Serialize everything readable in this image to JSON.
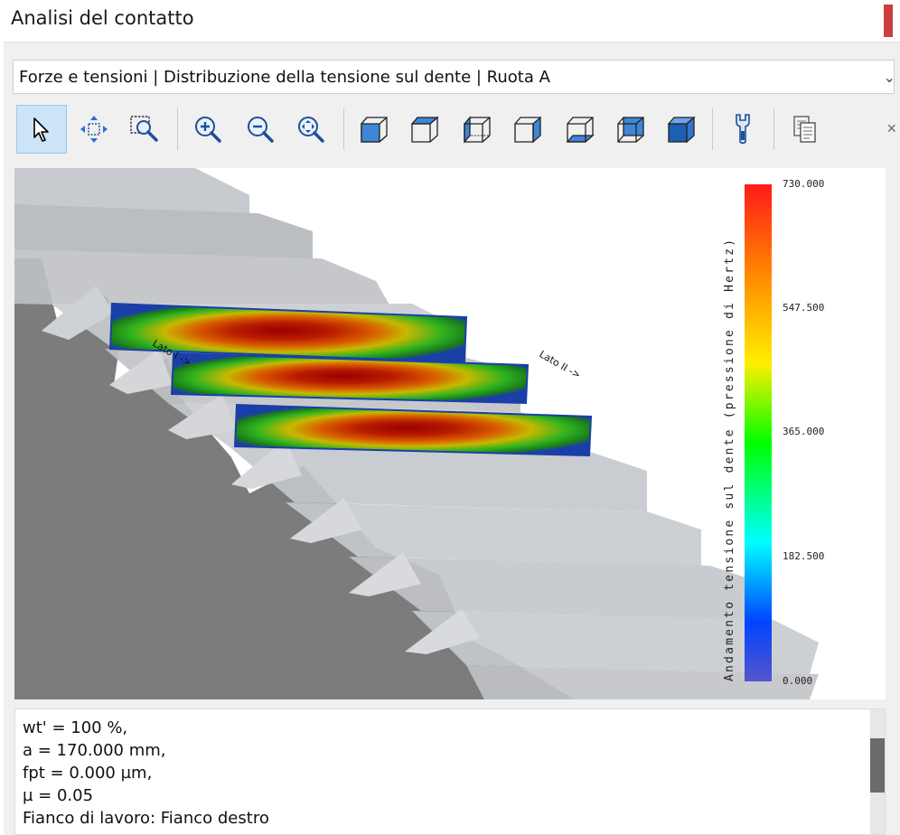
{
  "window": {
    "title": "Analisi del contatto"
  },
  "view_selector": {
    "value": "Forze e tensioni | Distribuzione della tensione sul dente | Ruota A"
  },
  "toolbar": {
    "buttons": [
      {
        "icon": "pointer-icon"
      },
      {
        "icon": "pan-icon"
      },
      {
        "icon": "zoom-window-icon"
      },
      {
        "icon": "zoom-in-icon"
      },
      {
        "icon": "zoom-out-icon"
      },
      {
        "icon": "zoom-fit-icon"
      },
      {
        "icon": "view-front-icon"
      },
      {
        "icon": "view-top-icon"
      },
      {
        "icon": "view-left-icon"
      },
      {
        "icon": "view-right-icon"
      },
      {
        "icon": "view-bottom-icon"
      },
      {
        "icon": "view-back-icon"
      },
      {
        "icon": "view-iso-icon"
      },
      {
        "icon": "settings-wrench-icon"
      },
      {
        "icon": "copy-icon"
      }
    ]
  },
  "plot": {
    "labels": {
      "side1": "Lato I ->",
      "side2": "Lato II ->"
    },
    "legend": {
      "title": "Andamento tensione sul dente (pressione di Hertz)",
      "ticks": [
        "730.000",
        "547.500",
        "365.000",
        "182.500",
        "0.000"
      ],
      "colors": [
        "#ff1a1a",
        "#ff8800",
        "#ffee00",
        "#00ff00",
        "#00ffff",
        "#0044ff",
        "#5555cc"
      ]
    }
  },
  "output": {
    "lines": [
      "wt' = 100 %,",
      "a = 170.000 mm,",
      "fpt = 0.000 µm,",
      "µ = 0.05",
      "Fianco di lavoro: Fianco destro"
    ]
  }
}
